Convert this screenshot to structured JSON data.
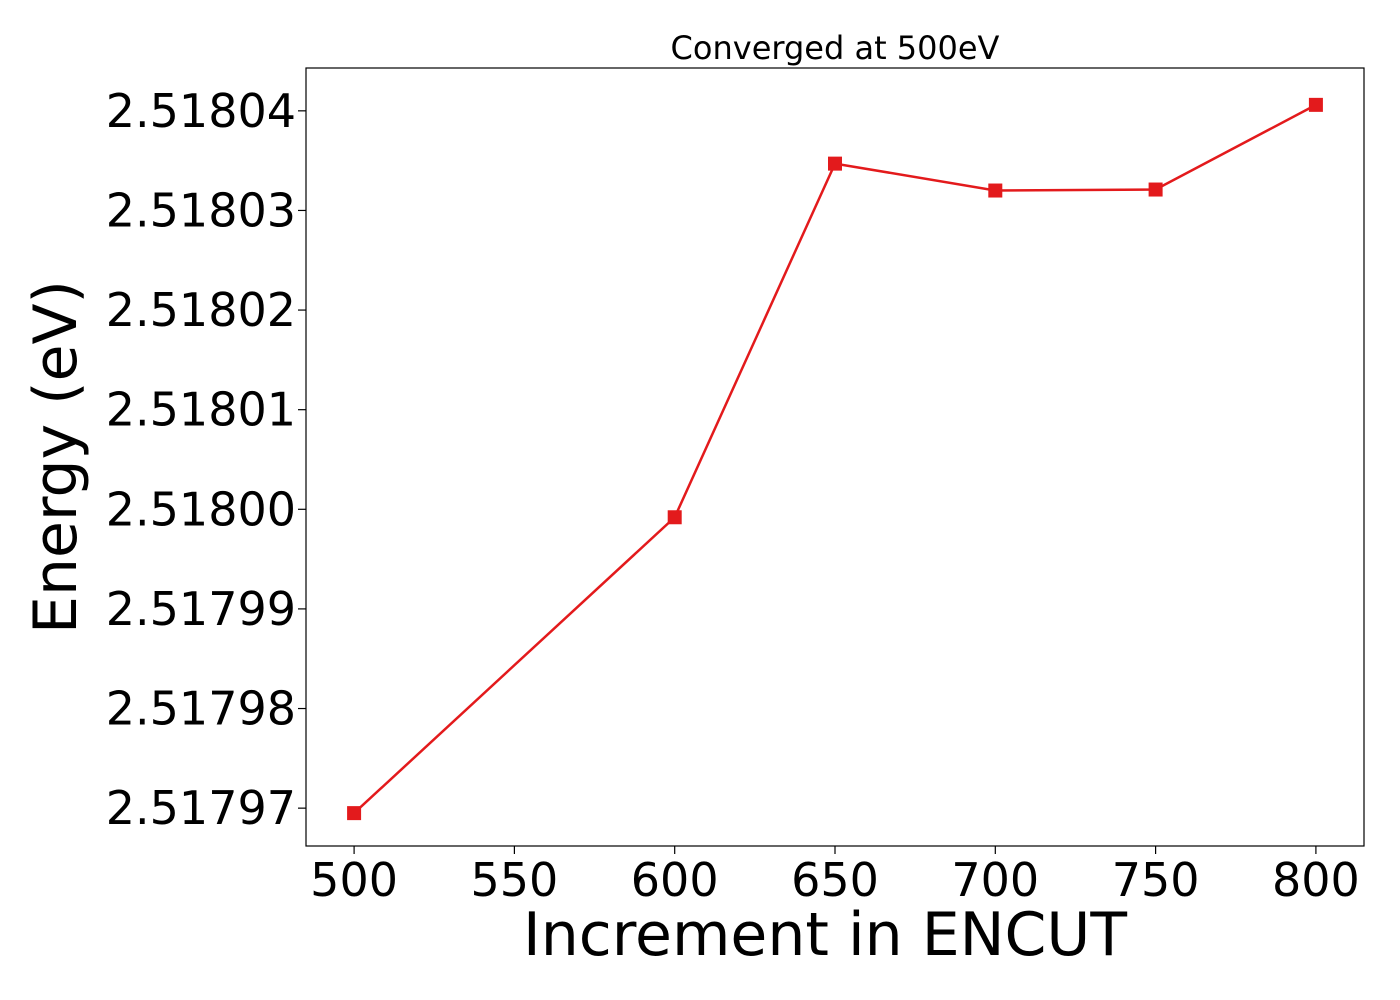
{
  "chart_data": {
    "type": "line",
    "title": "Converged at 500eV",
    "xlabel": "Increment in ENCUT",
    "ylabel": "Energy (eV)",
    "x": [
      500,
      600,
      650,
      700,
      750,
      800
    ],
    "series": [
      {
        "values": [
          2.5179695,
          2.5179992,
          2.5180347,
          2.518032,
          2.5180321,
          2.5180406
        ],
        "color": "#e31a1c",
        "marker": "square"
      }
    ],
    "xticks": [
      500,
      550,
      600,
      650,
      700,
      750,
      800
    ],
    "xtick_labels": [
      "500",
      "550",
      "600",
      "650",
      "700",
      "750",
      "800"
    ],
    "yticks": [
      2.51797,
      2.51798,
      2.51799,
      2.518,
      2.51801,
      2.51802,
      2.51803,
      2.51804
    ],
    "ytick_labels": [
      "2.51797",
      "2.51798",
      "2.51799",
      "2.51800",
      "2.51801",
      "2.51802",
      "2.51803",
      "2.51804"
    ],
    "xlim": [
      485,
      815
    ],
    "ylim": [
      2.5179662,
      2.5180443
    ],
    "grid": false,
    "legend": "none"
  }
}
